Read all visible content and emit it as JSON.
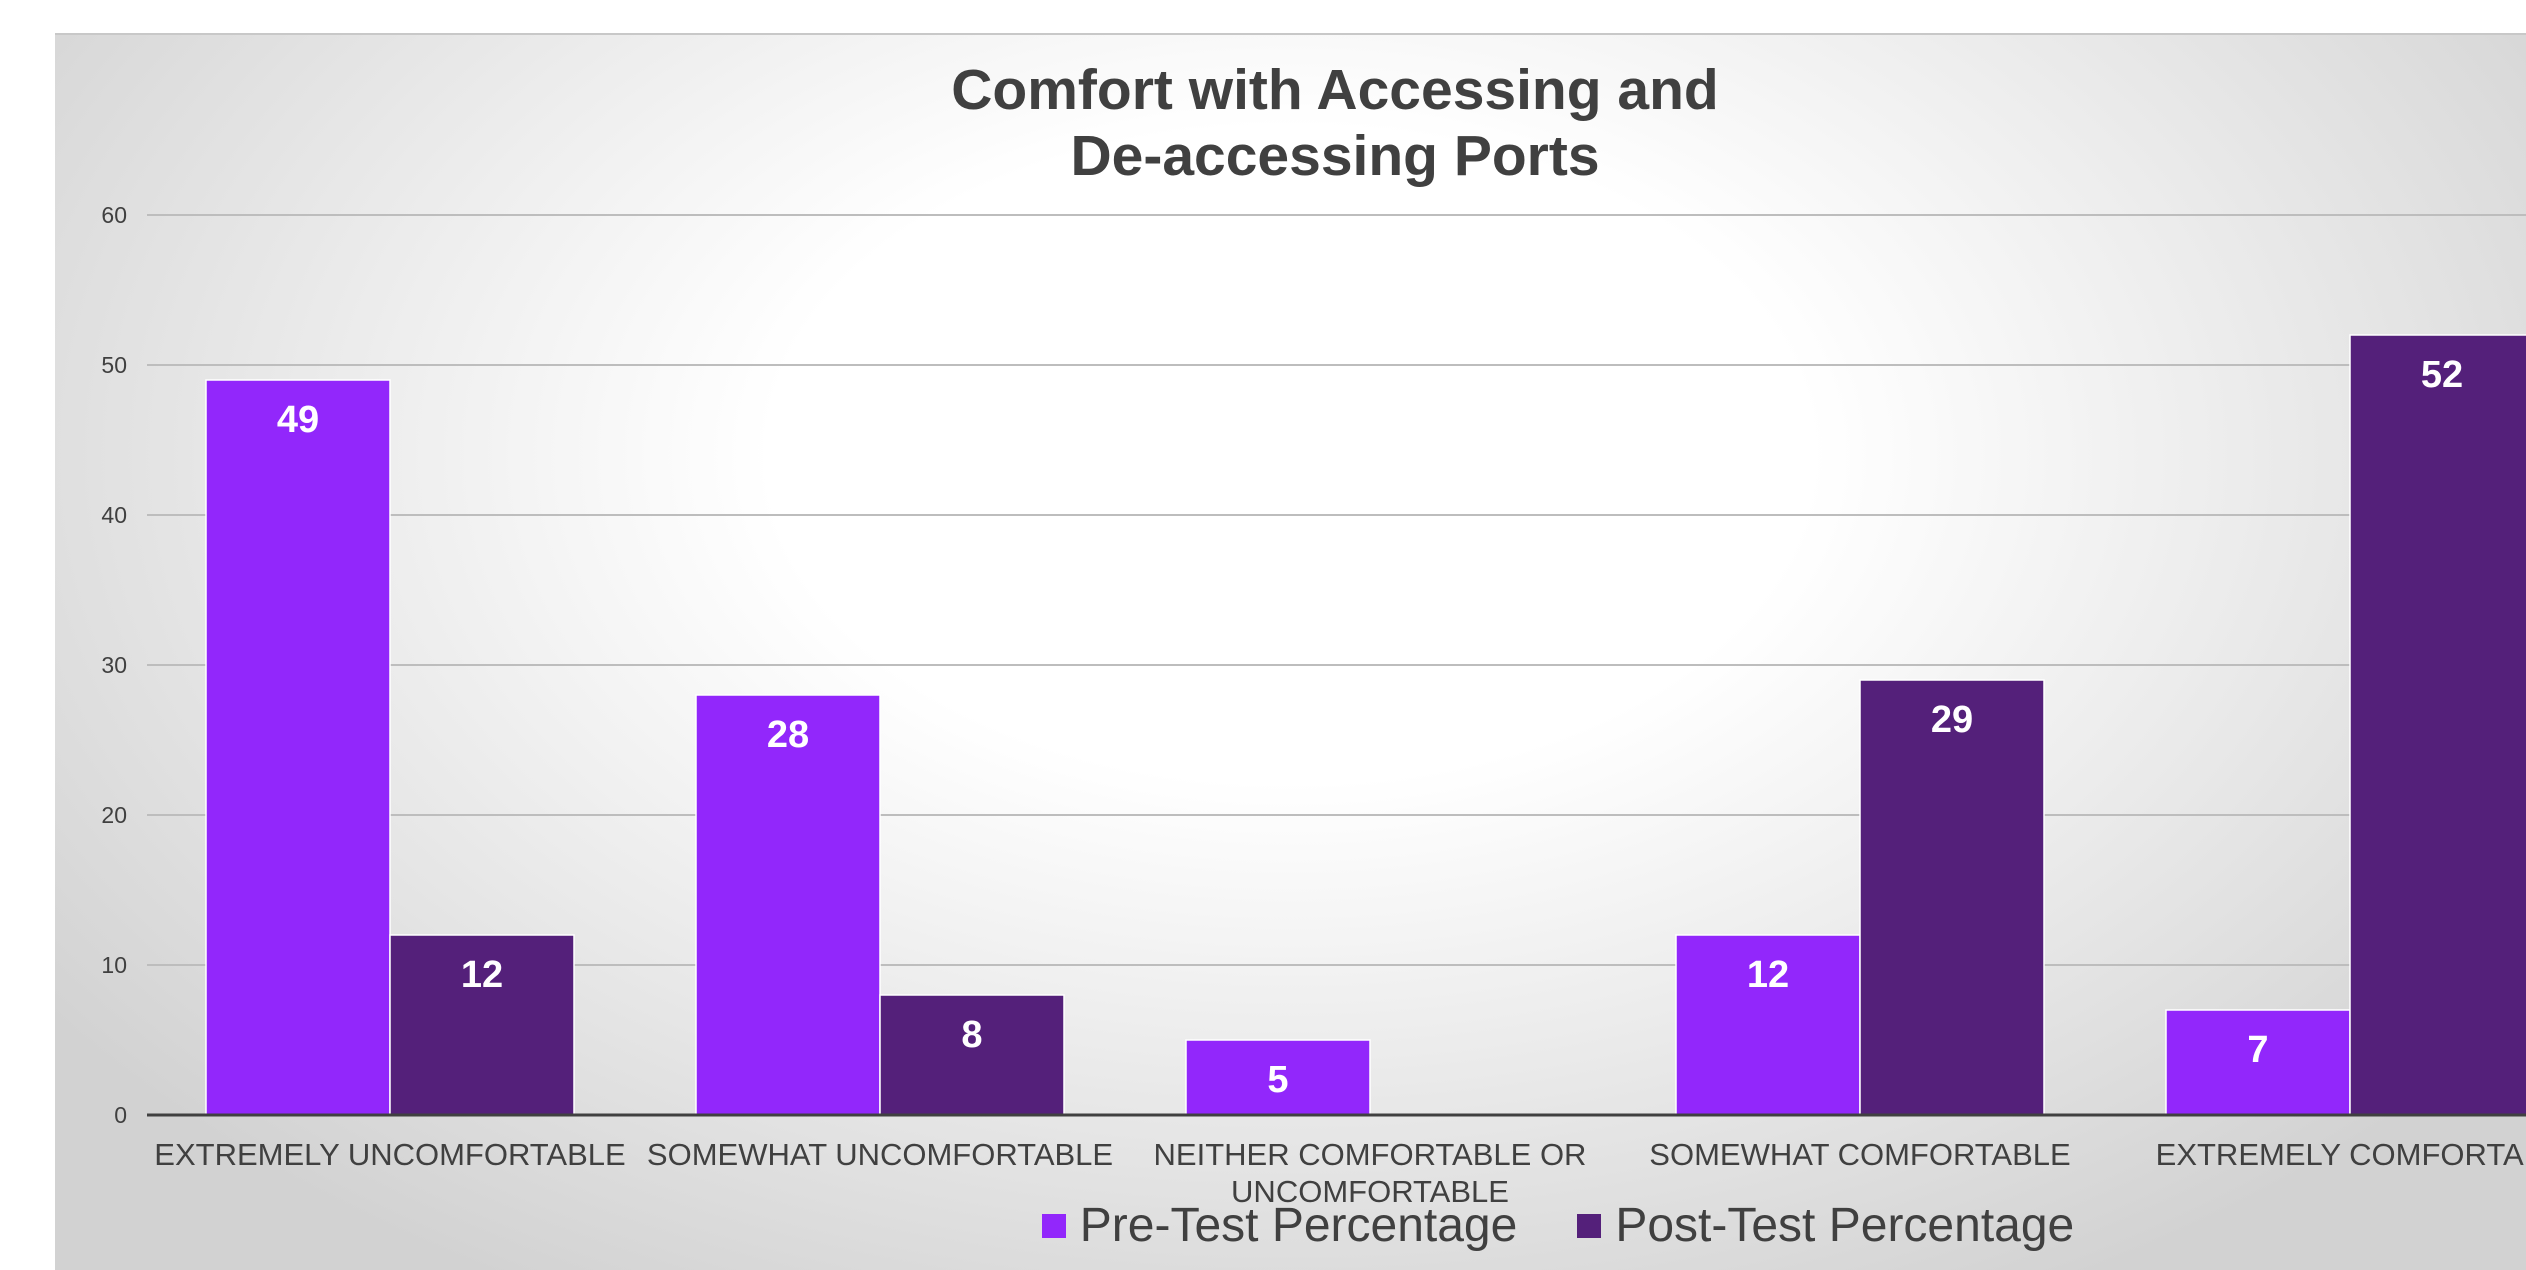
{
  "chart_data": {
    "type": "bar",
    "title_lines": [
      "Comfort with Accessing and",
      "De-accessing Ports"
    ],
    "categories": [
      [
        "EXTREMELY UNCOMFORTABLE"
      ],
      [
        "SOMEWHAT UNCOMFORTABLE"
      ],
      [
        "NEITHER COMFORTABLE OR",
        "UNCOMFORTABLE"
      ],
      [
        "SOMEWHAT COMFORTABLE"
      ],
      [
        "EXTREMELY COMFORTAB"
      ]
    ],
    "series": [
      {
        "name": "Pre-Test Percentage",
        "color": "#9227fb",
        "values": [
          49,
          28,
          5,
          12,
          7
        ]
      },
      {
        "name": "Post-Test Percentage",
        "color": "#54207a",
        "values": [
          12,
          8,
          null,
          29,
          52
        ]
      }
    ],
    "ylim": [
      0,
      60
    ],
    "yticks": [
      0,
      10,
      20,
      30,
      40,
      50,
      60
    ],
    "grid": true,
    "legend_position": "bottom"
  }
}
